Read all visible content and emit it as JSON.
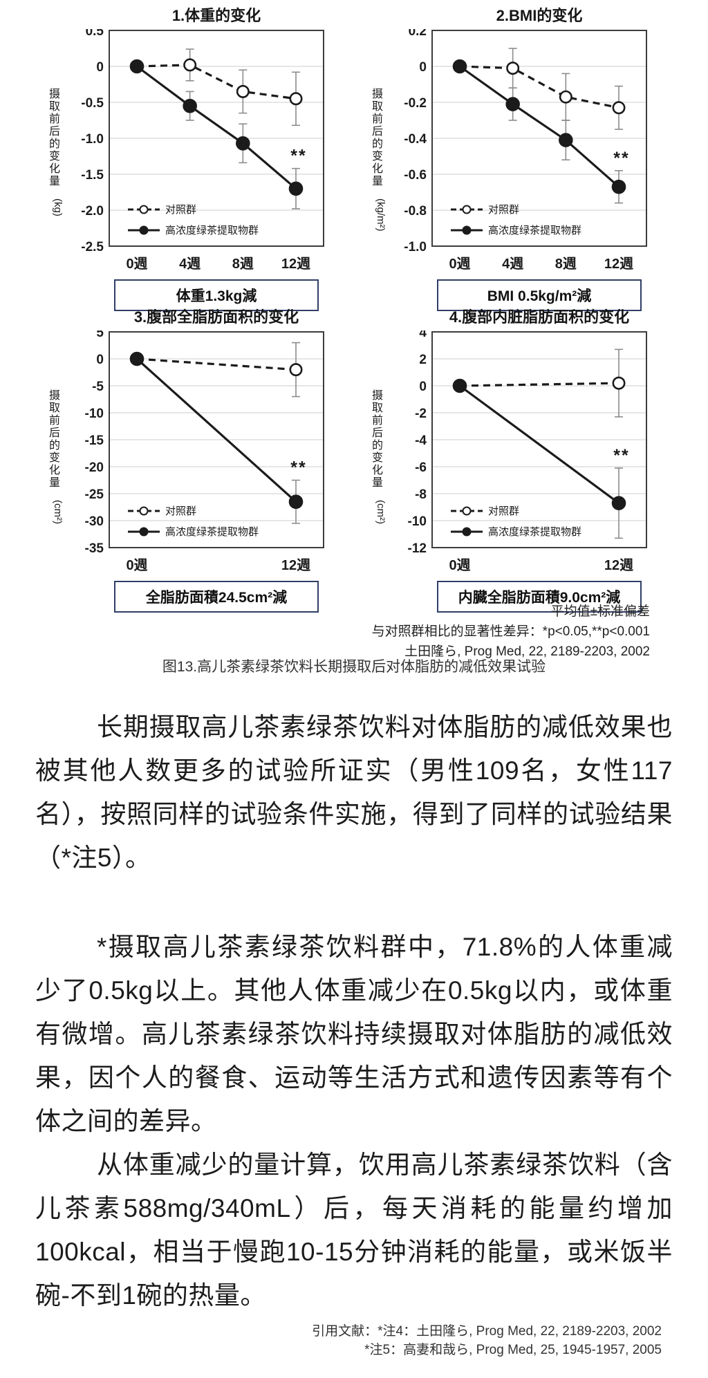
{
  "colors": {
    "ink": "#1b1b1b",
    "plot_border": "#3c3c3c",
    "grid": "#cdcdcd",
    "error_bar": "#8c8c8c",
    "box_border": "#2f3e66"
  },
  "figure": {
    "notes": [
      "平均值±标准偏差",
      "与对照群相比的显著性差异：*p<0.05,**p<0.001",
      "土田隆ら, Prog Med, 22, 2189-2203, 2002"
    ],
    "caption": "图13.高儿茶素绿茶饮料长期摄取后对体脂肪的减低效果试验"
  },
  "chart_data": [
    {
      "type": "line",
      "title": "1.体重的变化",
      "ylabel_cjk": "摄取前后的变化量",
      "ylabel_unit": "(kg)",
      "ylim": [
        0.5,
        -2.5
      ],
      "yticks": [
        "0.5",
        "0",
        "-0.5",
        "-1.0",
        "-1.5",
        "-2.0",
        "-2.5"
      ],
      "xticks": [
        "0週",
        "4週",
        "8週",
        "12週"
      ],
      "grid": true,
      "legend_position": "bottom-left",
      "series": [
        {
          "name": "对照群",
          "line": "dashed",
          "marker": "open",
          "values": [
            0,
            0.02,
            -0.35,
            -0.45
          ],
          "errors": [
            0,
            0.22,
            0.3,
            0.37
          ]
        },
        {
          "name": "高浓度绿茶提取物群",
          "line": "solid",
          "marker": "filled",
          "values": [
            0,
            -0.55,
            -1.07,
            -1.7
          ],
          "errors": [
            0,
            0.2,
            0.27,
            0.28
          ]
        }
      ],
      "significance_label": "**",
      "result_box": "体重1.3kg減"
    },
    {
      "type": "line",
      "title": "2.BMI的变化",
      "ylabel_cjk": "摄取前后的变化量",
      "ylabel_unit": "(kg/m²)",
      "ylim": [
        0.2,
        -1.0
      ],
      "yticks": [
        "0.2",
        "0",
        "-0.2",
        "-0.4",
        "-0.6",
        "-0.8",
        "-1.0"
      ],
      "xticks": [
        "0週",
        "4週",
        "8週",
        "12週"
      ],
      "grid": true,
      "legend_position": "bottom-left",
      "series": [
        {
          "name": "对照群",
          "line": "dashed",
          "marker": "open",
          "values": [
            0,
            -0.01,
            -0.17,
            -0.23
          ],
          "errors": [
            0,
            0.11,
            0.13,
            0.12
          ]
        },
        {
          "name": "高浓度绿茶提取物群",
          "line": "solid",
          "marker": "filled",
          "values": [
            0,
            -0.21,
            -0.41,
            -0.67
          ],
          "errors": [
            0,
            0.09,
            0.11,
            0.09
          ]
        }
      ],
      "significance_label": "**",
      "result_box": "BMI 0.5kg/m²減"
    },
    {
      "type": "line",
      "title": "3.腹部全脂肪面积的变化",
      "ylabel_cjk": "摄取前后的变化量",
      "ylabel_unit": "(cm²)",
      "ylim": [
        5,
        -35
      ],
      "yticks": [
        "5",
        "0",
        "-5",
        "-10",
        "-15",
        "-20",
        "-25",
        "-30",
        "-35"
      ],
      "xticks": [
        "0週",
        "12週"
      ],
      "grid": true,
      "legend_position": "bottom-left",
      "series": [
        {
          "name": "对照群",
          "line": "dashed",
          "marker": "open",
          "values": [
            0,
            -2.0
          ],
          "errors": [
            0,
            5.0
          ]
        },
        {
          "name": "高浓度绿茶提取物群",
          "line": "solid",
          "marker": "filled",
          "values": [
            0,
            -26.5
          ],
          "errors": [
            0,
            4.0
          ]
        }
      ],
      "significance_label": "**",
      "result_box": "全脂肪面積24.5cm²減"
    },
    {
      "type": "line",
      "title": "4.腹部内脏脂肪面积的变化",
      "ylabel_cjk": "摄取前后的变化量",
      "ylabel_unit": "(cm²)",
      "ylim": [
        4,
        -12
      ],
      "yticks": [
        "4",
        "2",
        "0",
        "-2",
        "-4",
        "-6",
        "-8",
        "-10",
        "-12"
      ],
      "xticks": [
        "0週",
        "12週"
      ],
      "grid": true,
      "legend_position": "bottom-left",
      "series": [
        {
          "name": "对照群",
          "line": "dashed",
          "marker": "open",
          "values": [
            0,
            0.2
          ],
          "errors": [
            0,
            2.5
          ]
        },
        {
          "name": "高浓度绿茶提取物群",
          "line": "solid",
          "marker": "filled",
          "values": [
            0,
            -8.7
          ],
          "errors": [
            0,
            2.6
          ]
        }
      ],
      "significance_label": "**",
      "result_box": "内臓全脂肪面積9.0cm²減"
    }
  ],
  "article": {
    "paragraphs": [
      "长期摄取高儿茶素绿茶饮料对体脂肪的减低效果也被其他人数更多的试验所证实（男性109名，女性117名），按照同样的试验条件实施，得到了同样的试验结果（*注5）。",
      "*摄取高儿茶素绿茶饮料群中，71.8%的人体重减少了0.5kg以上。其他人体重减少在0.5kg以内，或体重有微增。高儿茶素绿茶饮料持续摄取对体脂肪的减低效果，因个人的餐食、运动等生活方式和遗传因素等有个体之间的差异。",
      "从体重减少的量计算，饮用高儿茶素绿茶饮料（含儿茶素588mg/340mL）后，每天消耗的能量约增加100kcal，相当于慢跑10-15分钟消耗的能量，或米饭半碗-不到1碗的热量。"
    ],
    "references": [
      "引用文献：*注4：土田隆ら, Prog Med, 22, 2189-2203, 2002",
      "*注5：高妻和哉ら, Prog Med, 25, 1945-1957, 2005"
    ]
  }
}
